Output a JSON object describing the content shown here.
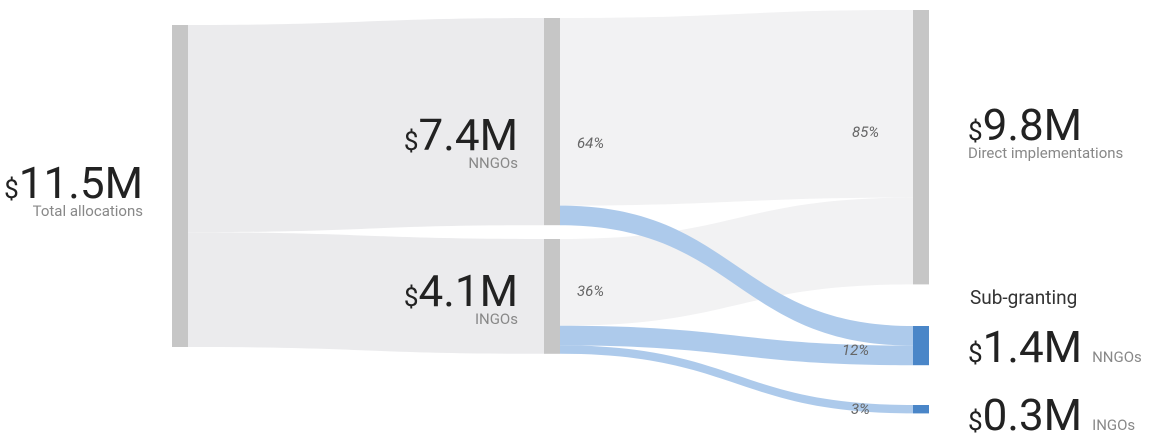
{
  "chart_data": {
    "type": "sankey",
    "group_label": "Sub-granting",
    "nodes": [
      {
        "name": "Total allocations",
        "value": 11.5,
        "currency": "$",
        "value_label": "11.5M",
        "color": "#c6c6c6"
      },
      {
        "name": "NNGOs",
        "value": 7.4,
        "currency": "$",
        "value_label": "7.4M",
        "share": 64,
        "share_label": "64%",
        "color": "#c6c6c6"
      },
      {
        "name": "INGOs",
        "value": 4.1,
        "currency": "$",
        "value_label": "4.1M",
        "share": 36,
        "share_label": "36%",
        "color": "#c6c6c6"
      },
      {
        "name": "Direct implementations",
        "value": 9.8,
        "currency": "$",
        "value_label": "9.8M",
        "share": 85,
        "share_label": "85%",
        "color": "#c6c6c6"
      },
      {
        "name": "NNGOs",
        "value": 1.4,
        "currency": "$",
        "value_label": "1.4M",
        "share": 12,
        "share_label": "12%",
        "color": "#4a86c8"
      },
      {
        "name": "INGOs",
        "value": 0.3,
        "currency": "$",
        "value_label": "0.3M",
        "share": 3,
        "share_label": "3%",
        "color": "#4a86c8"
      }
    ],
    "links": [
      {
        "source": 0,
        "target": 1,
        "value": 7.4,
        "color": "#ebebed"
      },
      {
        "source": 0,
        "target": 2,
        "value": 4.1,
        "color": "#ebebed"
      },
      {
        "source": 1,
        "target": 3,
        "value": 6.7,
        "color": "#f2f2f3"
      },
      {
        "source": 2,
        "target": 3,
        "value": 3.1,
        "color": "#f2f2f3"
      },
      {
        "source": 1,
        "target": 4,
        "value": 0.7,
        "color": "#a9c7ea"
      },
      {
        "source": 2,
        "target": 4,
        "value": 0.7,
        "color": "#a9c7ea"
      },
      {
        "source": 2,
        "target": 5,
        "value": 0.3,
        "color": "#a9c7ea"
      }
    ]
  }
}
